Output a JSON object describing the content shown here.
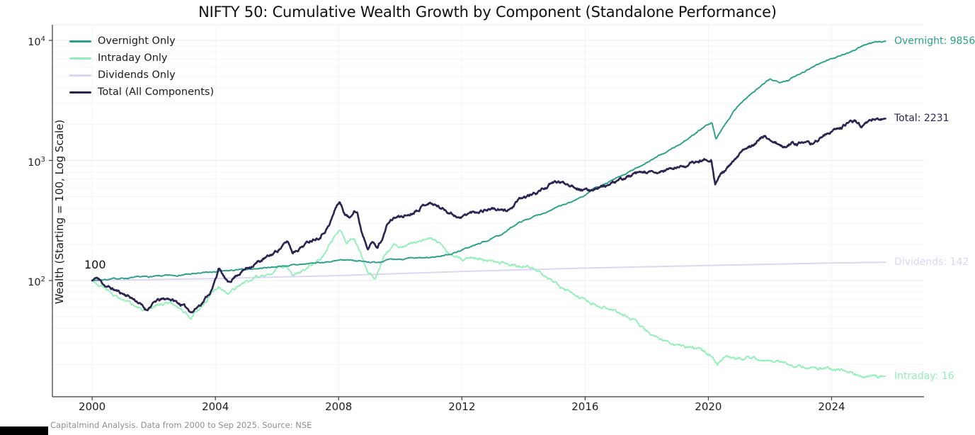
{
  "title": "NIFTY 50: Cumulative Wealth Growth by Component (Standalone Performance)",
  "footer": "Capitalmind Analysis. Data from 2000 to Sep 2025. Source: NSE",
  "annotations": {
    "start_value": "100"
  },
  "y_axis": {
    "label": "Wealth (Starting = 100, Log Scale)",
    "ticks": [
      {
        "base": "10",
        "exp": "4",
        "value": 10000
      },
      {
        "base": "10",
        "exp": "3",
        "value": 1000
      },
      {
        "base": "10",
        "exp": "2",
        "value": 100
      }
    ]
  },
  "x_axis": {
    "ticks": [
      {
        "label": "2000",
        "year": 2000
      },
      {
        "label": "2004",
        "year": 2004
      },
      {
        "label": "2008",
        "year": 2008
      },
      {
        "label": "2012",
        "year": 2012
      },
      {
        "label": "2016",
        "year": 2016
      },
      {
        "label": "2020",
        "year": 2020
      },
      {
        "label": "2024",
        "year": 2024
      }
    ]
  },
  "chart_data": {
    "type": "line",
    "title": "NIFTY 50: Cumulative Wealth Growth by Component (Standalone Performance)",
    "xlabel": "",
    "ylabel": "Wealth (Starting = 100, Log Scale)",
    "x_domain": [
      1998.71,
      2027.0
    ],
    "y_scale": "log",
    "y_domain": [
      79,
      13500
    ],
    "grid": true,
    "legend_position": "upper-left",
    "series": [
      {
        "name": "Overnight Only",
        "end_label": "Overnight: 9856",
        "end_value": 9856,
        "color": "#2aa088",
        "width": 1.9,
        "noise": 0.008,
        "seed": 7,
        "z": 2,
        "anchors": [
          [
            2000.0,
            100
          ],
          [
            2000.4,
            102
          ],
          [
            2000.8,
            104
          ],
          [
            2001.2,
            105
          ],
          [
            2001.6,
            107
          ],
          [
            2002.0,
            108
          ],
          [
            2002.5,
            110
          ],
          [
            2003.0,
            112
          ],
          [
            2003.5,
            115
          ],
          [
            2004.0,
            118
          ],
          [
            2004.5,
            121
          ],
          [
            2005.0,
            124
          ],
          [
            2005.5,
            127
          ],
          [
            2006.0,
            131
          ],
          [
            2006.5,
            134
          ],
          [
            2007.0,
            138
          ],
          [
            2007.5,
            142
          ],
          [
            2008.0,
            146
          ],
          [
            2008.4,
            149
          ],
          [
            2008.8,
            144
          ],
          [
            2009.2,
            142
          ],
          [
            2009.6,
            148
          ],
          [
            2010.0,
            151
          ],
          [
            2010.5,
            153
          ],
          [
            2010.9,
            154
          ],
          [
            2011.3,
            160
          ],
          [
            2011.7,
            168
          ],
          [
            2012.0,
            180
          ],
          [
            2012.5,
            200
          ],
          [
            2013.0,
            224
          ],
          [
            2013.4,
            252
          ],
          [
            2013.8,
            300
          ],
          [
            2014.2,
            330
          ],
          [
            2014.6,
            362
          ],
          [
            2015.0,
            398
          ],
          [
            2015.5,
            445
          ],
          [
            2016.0,
            515
          ],
          [
            2016.3,
            590
          ],
          [
            2016.7,
            645
          ],
          [
            2017.0,
            705
          ],
          [
            2017.5,
            815
          ],
          [
            2018.0,
            965
          ],
          [
            2018.5,
            1125
          ],
          [
            2019.0,
            1330
          ],
          [
            2019.5,
            1610
          ],
          [
            2019.9,
            1930
          ],
          [
            2020.12,
            2050
          ],
          [
            2020.25,
            1500
          ],
          [
            2020.45,
            1850
          ],
          [
            2020.7,
            2300
          ],
          [
            2020.95,
            2850
          ],
          [
            2021.3,
            3420
          ],
          [
            2021.7,
            4150
          ],
          [
            2022.0,
            4720
          ],
          [
            2022.3,
            4520
          ],
          [
            2022.6,
            4680
          ],
          [
            2023.0,
            5350
          ],
          [
            2023.5,
            6250
          ],
          [
            2024.0,
            7050
          ],
          [
            2024.4,
            7650
          ],
          [
            2024.8,
            8450
          ],
          [
            2025.1,
            9250
          ],
          [
            2025.4,
            9600
          ],
          [
            2025.75,
            9856
          ]
        ]
      },
      {
        "name": "Intraday Only",
        "end_label": "Intraday: 16",
        "end_value": 16,
        "color": "#93f0b9",
        "width": 1.9,
        "noise": 0.02,
        "seed": 3,
        "z": 1,
        "anchors": [
          [
            2000.0,
            100
          ],
          [
            2000.3,
            90
          ],
          [
            2000.7,
            76
          ],
          [
            2001.0,
            68
          ],
          [
            2001.4,
            61
          ],
          [
            2001.8,
            54
          ],
          [
            2002.1,
            63
          ],
          [
            2002.5,
            66
          ],
          [
            2002.9,
            58
          ],
          [
            2003.2,
            50
          ],
          [
            2003.6,
            63
          ],
          [
            2003.9,
            78
          ],
          [
            2004.1,
            88
          ],
          [
            2004.4,
            76
          ],
          [
            2004.7,
            88
          ],
          [
            2005.0,
            97
          ],
          [
            2005.5,
            108
          ],
          [
            2006.0,
            124
          ],
          [
            2006.35,
            130
          ],
          [
            2006.5,
            110
          ],
          [
            2006.8,
            120
          ],
          [
            2007.0,
            132
          ],
          [
            2007.5,
            165
          ],
          [
            2007.9,
            235
          ],
          [
            2008.05,
            270
          ],
          [
            2008.25,
            205
          ],
          [
            2008.5,
            230
          ],
          [
            2008.75,
            160
          ],
          [
            2008.95,
            115
          ],
          [
            2009.2,
            104
          ],
          [
            2009.45,
            155
          ],
          [
            2009.8,
            200
          ],
          [
            2010.2,
            192
          ],
          [
            2010.6,
            212
          ],
          [
            2010.9,
            228
          ],
          [
            2011.3,
            200
          ],
          [
            2011.7,
            160
          ],
          [
            2012.0,
            150
          ],
          [
            2012.4,
            156
          ],
          [
            2012.8,
            149
          ],
          [
            2013.2,
            141
          ],
          [
            2013.6,
            134
          ],
          [
            2014.0,
            131
          ],
          [
            2014.3,
            128
          ],
          [
            2014.7,
            108
          ],
          [
            2015.0,
            95
          ],
          [
            2015.4,
            82
          ],
          [
            2015.8,
            74
          ],
          [
            2016.1,
            69
          ],
          [
            2016.5,
            62
          ],
          [
            2017.0,
            56
          ],
          [
            2017.4,
            50
          ],
          [
            2017.8,
            42
          ],
          [
            2018.2,
            35
          ],
          [
            2018.6,
            31
          ],
          [
            2019.0,
            28.5
          ],
          [
            2019.4,
            27.5
          ],
          [
            2019.8,
            26
          ],
          [
            2020.1,
            24
          ],
          [
            2020.3,
            20.5
          ],
          [
            2020.6,
            24
          ],
          [
            2020.9,
            22
          ],
          [
            2021.3,
            23.2
          ],
          [
            2021.7,
            22.4
          ],
          [
            2022.0,
            21
          ],
          [
            2022.4,
            20.6
          ],
          [
            2022.8,
            19.6
          ],
          [
            2023.2,
            19
          ],
          [
            2023.6,
            18.7
          ],
          [
            2024.0,
            18.3
          ],
          [
            2024.4,
            17.8
          ],
          [
            2024.8,
            16.3
          ],
          [
            2025.05,
            15.4
          ],
          [
            2025.3,
            16.6
          ],
          [
            2025.5,
            15.8
          ],
          [
            2025.75,
            16
          ]
        ]
      },
      {
        "name": "Dividends Only",
        "end_label": "Dividends: 142",
        "end_value": 142,
        "color": "#ded4f6",
        "width": 1.9,
        "noise": 0,
        "seed": 1,
        "z": 0,
        "anchors": [
          [
            2000.0,
            100
          ],
          [
            2004.0,
            104
          ],
          [
            2008.0,
            110
          ],
          [
            2012.0,
            119
          ],
          [
            2016.0,
            127
          ],
          [
            2020.0,
            133.5
          ],
          [
            2024.0,
            140
          ],
          [
            2025.75,
            142
          ]
        ]
      },
      {
        "name": "Total (All Components)",
        "end_label": "Total: 2231",
        "end_value": 2231,
        "color": "#2d2352",
        "width": 2.6,
        "noise": 0.02,
        "seed": 11,
        "z": 3,
        "anchors": [
          [
            2000.0,
            100
          ],
          [
            2000.15,
            106
          ],
          [
            2000.45,
            90
          ],
          [
            2000.8,
            82
          ],
          [
            2001.2,
            74
          ],
          [
            2001.5,
            66
          ],
          [
            2001.75,
            57
          ],
          [
            2002.1,
            68
          ],
          [
            2002.5,
            71
          ],
          [
            2002.9,
            63
          ],
          [
            2003.25,
            55
          ],
          [
            2003.6,
            67
          ],
          [
            2003.9,
            85
          ],
          [
            2004.05,
            112
          ],
          [
            2004.1,
            128
          ],
          [
            2004.4,
            95
          ],
          [
            2004.7,
            112
          ],
          [
            2005.0,
            126
          ],
          [
            2005.4,
            143
          ],
          [
            2005.8,
            162
          ],
          [
            2006.1,
            186
          ],
          [
            2006.35,
            212
          ],
          [
            2006.5,
            172
          ],
          [
            2006.8,
            192
          ],
          [
            2007.1,
            218
          ],
          [
            2007.4,
            235
          ],
          [
            2007.7,
            290
          ],
          [
            2007.95,
            430
          ],
          [
            2008.03,
            452
          ],
          [
            2008.2,
            360
          ],
          [
            2008.35,
            330
          ],
          [
            2008.5,
            392
          ],
          [
            2008.6,
            370
          ],
          [
            2008.75,
            255
          ],
          [
            2008.95,
            192
          ],
          [
            2009.1,
            210
          ],
          [
            2009.25,
            187
          ],
          [
            2009.45,
            235
          ],
          [
            2009.6,
            300
          ],
          [
            2009.8,
            332
          ],
          [
            2010.0,
            340
          ],
          [
            2010.3,
            355
          ],
          [
            2010.6,
            400
          ],
          [
            2010.9,
            448
          ],
          [
            2011.1,
            430
          ],
          [
            2011.4,
            395
          ],
          [
            2011.7,
            360
          ],
          [
            2011.95,
            330
          ],
          [
            2012.2,
            362
          ],
          [
            2012.6,
            382
          ],
          [
            2013.0,
            400
          ],
          [
            2013.3,
            378
          ],
          [
            2013.6,
            398
          ],
          [
            2013.9,
            478
          ],
          [
            2014.3,
            522
          ],
          [
            2014.7,
            592
          ],
          [
            2015.05,
            665
          ],
          [
            2015.5,
            635
          ],
          [
            2015.9,
            575
          ],
          [
            2016.1,
            556
          ],
          [
            2016.4,
            600
          ],
          [
            2016.8,
            625
          ],
          [
            2017.2,
            702
          ],
          [
            2017.6,
            762
          ],
          [
            2018.0,
            802
          ],
          [
            2018.3,
            772
          ],
          [
            2018.6,
            832
          ],
          [
            2019.0,
            872
          ],
          [
            2019.4,
            932
          ],
          [
            2019.8,
            1002
          ],
          [
            2020.1,
            1035
          ],
          [
            2020.22,
            640
          ],
          [
            2020.35,
            730
          ],
          [
            2020.5,
            810
          ],
          [
            2020.8,
            960
          ],
          [
            2021.2,
            1260
          ],
          [
            2021.6,
            1460
          ],
          [
            2021.8,
            1580
          ],
          [
            2022.1,
            1460
          ],
          [
            2022.45,
            1260
          ],
          [
            2022.7,
            1410
          ],
          [
            2023.0,
            1390
          ],
          [
            2023.3,
            1360
          ],
          [
            2023.6,
            1510
          ],
          [
            2023.9,
            1710
          ],
          [
            2024.2,
            1810
          ],
          [
            2024.5,
            2010
          ],
          [
            2024.75,
            2160
          ],
          [
            2024.95,
            1965
          ],
          [
            2025.2,
            2110
          ],
          [
            2025.45,
            2240
          ],
          [
            2025.6,
            2190
          ],
          [
            2025.75,
            2231
          ]
        ]
      }
    ]
  }
}
